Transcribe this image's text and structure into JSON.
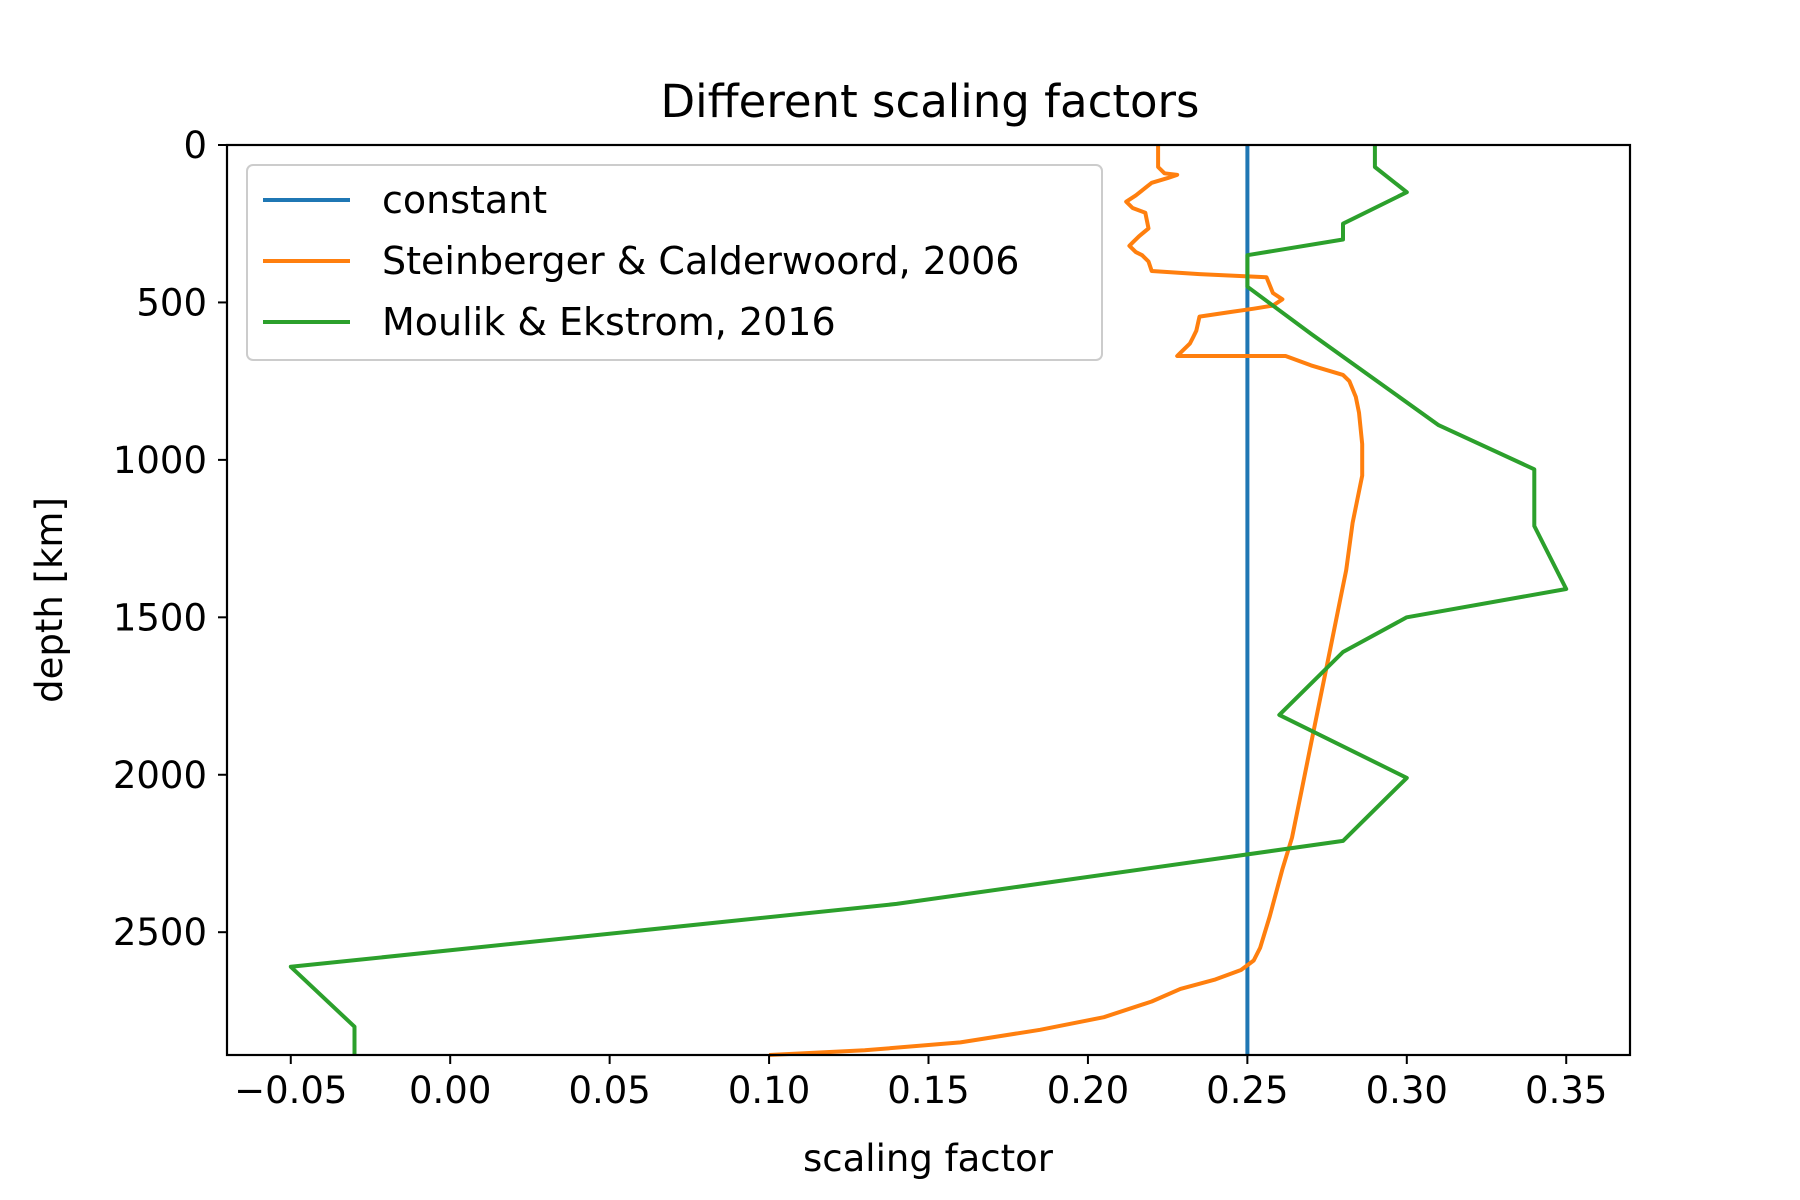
{
  "chart_data": {
    "type": "line",
    "title": "Different scaling factors",
    "xlabel": "scaling factor",
    "ylabel": "depth [km]",
    "xlim": [
      -0.07,
      0.37
    ],
    "ylim": [
      2890,
      0
    ],
    "y_inverted": true,
    "xticks": [
      -0.05,
      0.0,
      0.05,
      0.1,
      0.15,
      0.2,
      0.25,
      0.3,
      0.35
    ],
    "xtick_labels": [
      "−0.05",
      "0.00",
      "0.05",
      "0.10",
      "0.15",
      "0.20",
      "0.25",
      "0.30",
      "0.35"
    ],
    "yticks": [
      0,
      500,
      1000,
      1500,
      2000,
      2500
    ],
    "ytick_labels": [
      "0",
      "500",
      "1000",
      "1500",
      "2000",
      "2500"
    ],
    "grid": false,
    "legend_position": "top-left",
    "series": [
      {
        "name": "constant",
        "color": "#1f77b4",
        "points": [
          [
            0.25,
            0
          ],
          [
            0.25,
            2890
          ]
        ]
      },
      {
        "name": "Steinberger & Calderwoord, 2006",
        "color": "#ff7f0e",
        "points": [
          [
            0.222,
            0
          ],
          [
            0.222,
            70
          ],
          [
            0.224,
            90
          ],
          [
            0.228,
            95
          ],
          [
            0.225,
            105
          ],
          [
            0.22,
            120
          ],
          [
            0.215,
            160
          ],
          [
            0.212,
            180
          ],
          [
            0.214,
            200
          ],
          [
            0.218,
            215
          ],
          [
            0.219,
            265
          ],
          [
            0.216,
            290
          ],
          [
            0.214,
            310
          ],
          [
            0.213,
            320
          ],
          [
            0.215,
            340
          ],
          [
            0.217,
            350
          ],
          [
            0.219,
            370
          ],
          [
            0.22,
            400
          ],
          [
            0.235,
            410
          ],
          [
            0.256,
            420
          ],
          [
            0.258,
            470
          ],
          [
            0.261,
            490
          ],
          [
            0.258,
            510
          ],
          [
            0.252,
            520
          ],
          [
            0.245,
            530
          ],
          [
            0.235,
            545
          ],
          [
            0.234,
            590
          ],
          [
            0.233,
            610
          ],
          [
            0.232,
            630
          ],
          [
            0.229,
            660
          ],
          [
            0.228,
            670
          ],
          [
            0.24,
            670
          ],
          [
            0.262,
            670
          ],
          [
            0.27,
            700
          ],
          [
            0.28,
            730
          ],
          [
            0.282,
            750
          ],
          [
            0.284,
            800
          ],
          [
            0.285,
            850
          ],
          [
            0.286,
            950
          ],
          [
            0.286,
            1050
          ],
          [
            0.285,
            1100
          ],
          [
            0.283,
            1200
          ],
          [
            0.281,
            1350
          ],
          [
            0.279,
            1450
          ],
          [
            0.276,
            1600
          ],
          [
            0.273,
            1750
          ],
          [
            0.27,
            1900
          ],
          [
            0.267,
            2050
          ],
          [
            0.264,
            2200
          ],
          [
            0.261,
            2300
          ],
          [
            0.257,
            2450
          ],
          [
            0.254,
            2550
          ],
          [
            0.252,
            2590
          ],
          [
            0.248,
            2620
          ],
          [
            0.24,
            2650
          ],
          [
            0.229,
            2680
          ],
          [
            0.22,
            2720
          ],
          [
            0.205,
            2770
          ],
          [
            0.185,
            2810
          ],
          [
            0.16,
            2850
          ],
          [
            0.13,
            2875
          ],
          [
            0.1,
            2890
          ]
        ]
      },
      {
        "name": "Moulik & Ekstrom, 2016",
        "color": "#2ca02c",
        "points": [
          [
            0.29,
            0
          ],
          [
            0.29,
            70
          ],
          [
            0.3,
            150
          ],
          [
            0.28,
            250
          ],
          [
            0.28,
            300
          ],
          [
            0.25,
            350
          ],
          [
            0.25,
            450
          ],
          [
            0.27,
            600
          ],
          [
            0.31,
            890
          ],
          [
            0.34,
            1030
          ],
          [
            0.34,
            1210
          ],
          [
            0.35,
            1410
          ],
          [
            0.3,
            1500
          ],
          [
            0.28,
            1610
          ],
          [
            0.26,
            1810
          ],
          [
            0.3,
            2010
          ],
          [
            0.28,
            2210
          ],
          [
            0.14,
            2410
          ],
          [
            -0.05,
            2610
          ],
          [
            -0.03,
            2800
          ],
          [
            -0.03,
            2890
          ]
        ]
      }
    ]
  }
}
